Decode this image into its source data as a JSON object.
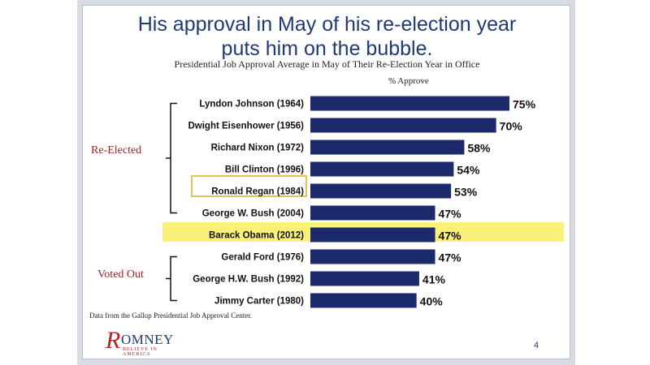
{
  "slide": {
    "title_line1": "His approval in May of his re-election year",
    "title_line2": "puts him on the bubble.",
    "subtitle": "Presidential Job Approval Average in May of Their Re-Election Year in Office",
    "unit_label": "% Approve",
    "source": "Data from the Gallup Presidential Job Approval Center.",
    "page_number": "4",
    "logo": {
      "mark": "R",
      "text": "OMNEY",
      "tagline": "BELIEVE IN AMERICA"
    }
  },
  "groups": [
    {
      "label": "Re-Elected",
      "first_index": 0,
      "last_index": 5
    },
    {
      "label": "Voted Out",
      "first_index": 7,
      "last_index": 9
    }
  ],
  "colors": {
    "bar": "#1c2a6b",
    "highlight": "#fbf17a",
    "box": "#e0c556",
    "title": "#1f3a73",
    "group_label": "#a22222"
  },
  "chart_data": {
    "type": "bar",
    "orientation": "horizontal",
    "title": "Presidential Job Approval Average in May of Their Re-Election Year in Office",
    "xlabel": "% Approve",
    "categories": [
      "Lyndon Johnson (1964)",
      "Dwight Eisenhower (1956)",
      "Richard Nixon (1972)",
      "Bill Clinton (1996)",
      "Ronald Regan (1984)",
      "George W. Bush (2004)",
      "Barack Obama (2012)",
      "Gerald Ford (1976)",
      "George H.W. Bush (1992)",
      "Jimmy Carter (1980)"
    ],
    "values": [
      75,
      70,
      58,
      54,
      53,
      47,
      47,
      47,
      41,
      40
    ],
    "value_labels": [
      "75%",
      "70%",
      "58%",
      "54%",
      "53%",
      "47%",
      "47%",
      "47%",
      "41%",
      "40%"
    ],
    "highlighted": "Barack Obama (2012)",
    "boxed": "Ronald Regan (1984)",
    "xlim": [
      0,
      75
    ],
    "grid": false,
    "legend": "none"
  }
}
